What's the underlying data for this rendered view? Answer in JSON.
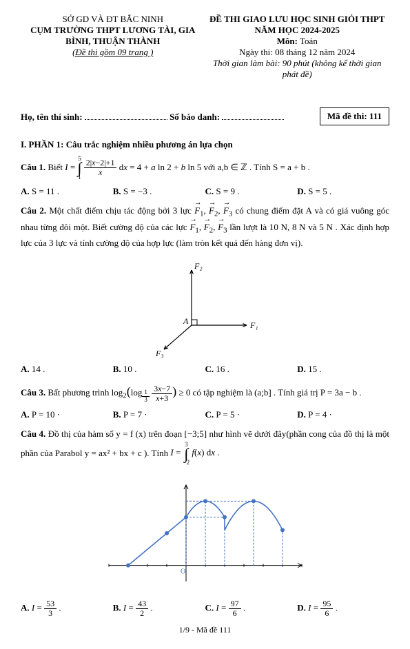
{
  "header": {
    "dept": "SỞ GD VÀ ĐT BẮC NINH",
    "schools": "CỤM TRƯỜNG THPT LƯƠNG TÀI, GIA BÌNH, THUẬN THÀNH",
    "pages_note": "(Đề thi gồm 09  trang )",
    "title": "ĐỀ THI GIAO LƯU HỌC SINH GIỎI THPT",
    "year": "NĂM HỌC 2024-2025",
    "subject_label": "Môn:",
    "subject": "Toán",
    "date": "Ngày thi: 08 tháng 12 năm 2024",
    "duration": "Thời gian làm bài: 90 phút (không kể thời gian phát đề)"
  },
  "info": {
    "name_label": "Họ, tên thí sinh:",
    "id_label": "Số báo danh:",
    "code_label": "Mã đề thi:",
    "code": "111"
  },
  "section1_title": "I. PHẦN 1: Câu trắc nghiệm nhiều phương án lựa chọn",
  "q1": {
    "label": "Câu 1.",
    "pre": "Biết ",
    "mid": " với  a,b ∈ ℤ . Tính  S = a + b .",
    "A": "S = 11 .",
    "B": "S = −3 .",
    "C": "S = 9 .",
    "D": "S = 5 ."
  },
  "q2": {
    "label": "Câu 2.",
    "text1": "Một chất điểm chịu tác động bởi 3 lực ",
    "text2": " có chung điểm đặt  A  và có giá vuông góc nhau từng đôi một. Biết cường độ của các lực ",
    "text3": " lần lượt là 10 N, 8 N  và 5 N . Xác định hợp lực của 3 lực và tính cường độ của hợp lực (làm tròn kết quả đến hàng đơn vị).",
    "A": "14 .",
    "B": "10 .",
    "C": "16 .",
    "D": "15 .",
    "diagram": {
      "bg": "#ffffff",
      "axis_color": "#000000",
      "labels": {
        "F1": "F₁",
        "F2": "F₂",
        "F3": "F₃",
        "A": "A"
      }
    }
  },
  "q3": {
    "label": "Câu 3.",
    "pre": "Bất phương trình ",
    "post": " có tập nghiệm là (a;b] . Tính giá trị  P = 3a − b .",
    "A": "P = 10 ·",
    "B": "P = 7 ·",
    "C": "P = 5 ·",
    "D": "P = 4 ·"
  },
  "q4": {
    "label": "Câu 4.",
    "text1": "Đồ thị của hàm số  y = f (x)  trên đoạn  [−3;5]  như hình vẽ dưới đây(phần cong của đồ thị là một phần của Parabol  y = ax² + bx + c ). Tính ",
    "A_num": "53",
    "A_den": "3",
    "B_num": "43",
    "B_den": "2",
    "C_num": "97",
    "C_den": "6",
    "D_num": "95",
    "D_den": "6",
    "chart": {
      "type": "line",
      "x_range": [
        -4,
        6
      ],
      "y_range": [
        -1,
        5
      ],
      "grid_color": "#e8e8e8",
      "axis_color": "#000000",
      "curve_color": "#4472c4",
      "point_color": "#4472c4",
      "dash_color": "#4472c4",
      "label_color": "#4472c4",
      "segments": [
        {
          "type": "line",
          "from": [
            -3,
            0
          ],
          "to": [
            -1,
            2
          ]
        },
        {
          "type": "line",
          "from": [
            -1,
            2
          ],
          "to": [
            0,
            3
          ]
        },
        {
          "type": "parabola",
          "vertex": [
            1,
            4
          ],
          "from_x": 0,
          "to_x": 2,
          "a": -1
        },
        {
          "type": "line",
          "from": [
            2,
            3
          ],
          "to": [
            2,
            3
          ]
        },
        {
          "type": "parabola",
          "vertex": [
            3.5,
            4
          ],
          "from_x": 2,
          "to_x": 5,
          "a": -0.8
        }
      ],
      "drop_lines_x": [
        0,
        1,
        2,
        3.5,
        5
      ],
      "points": [
        [
          -3,
          0
        ],
        [
          -1,
          2
        ],
        [
          0,
          3
        ],
        [
          1,
          4
        ],
        [
          2,
          3
        ],
        [
          3.5,
          4
        ],
        [
          5,
          2.2
        ]
      ],
      "point_radius": 3,
      "stroke_width": 1.6
    }
  },
  "footer": "1/9 - Mã đề 111"
}
